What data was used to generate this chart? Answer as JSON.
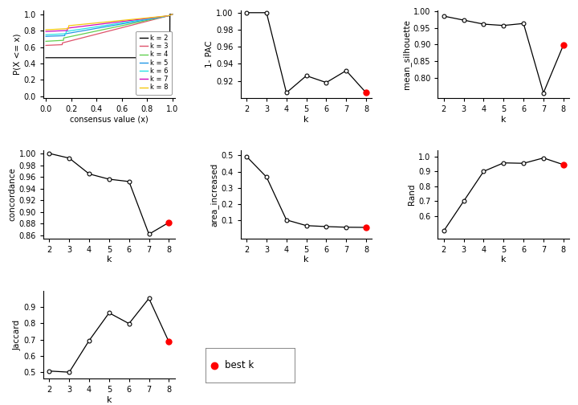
{
  "ecdf_colors": {
    "k2": "#000000",
    "k3": "#DF536B",
    "k4": "#61D04F",
    "k5": "#2297E6",
    "k6": "#28E2E5",
    "k7": "#CD0BBC",
    "k8": "#F5C710"
  },
  "k_values": [
    2,
    3,
    4,
    5,
    6,
    7,
    8
  ],
  "one_minus_pac": [
    1.0,
    1.0,
    0.906,
    0.926,
    0.918,
    0.932,
    0.906
  ],
  "mean_silhouette": [
    0.985,
    0.973,
    0.961,
    0.957,
    0.963,
    0.755,
    0.898
  ],
  "concordance": [
    1.0,
    0.992,
    0.965,
    0.956,
    0.952,
    0.862,
    0.882
  ],
  "area_increased": [
    0.493,
    0.367,
    0.103,
    0.068,
    0.062,
    0.058,
    0.057
  ],
  "rand": [
    0.5,
    0.7,
    0.9,
    0.957,
    0.954,
    0.99,
    0.945
  ],
  "jaccard": [
    0.507,
    0.5,
    0.695,
    0.865,
    0.799,
    0.954,
    0.687
  ],
  "best_k": 8,
  "background_color": "#FFFFFF"
}
